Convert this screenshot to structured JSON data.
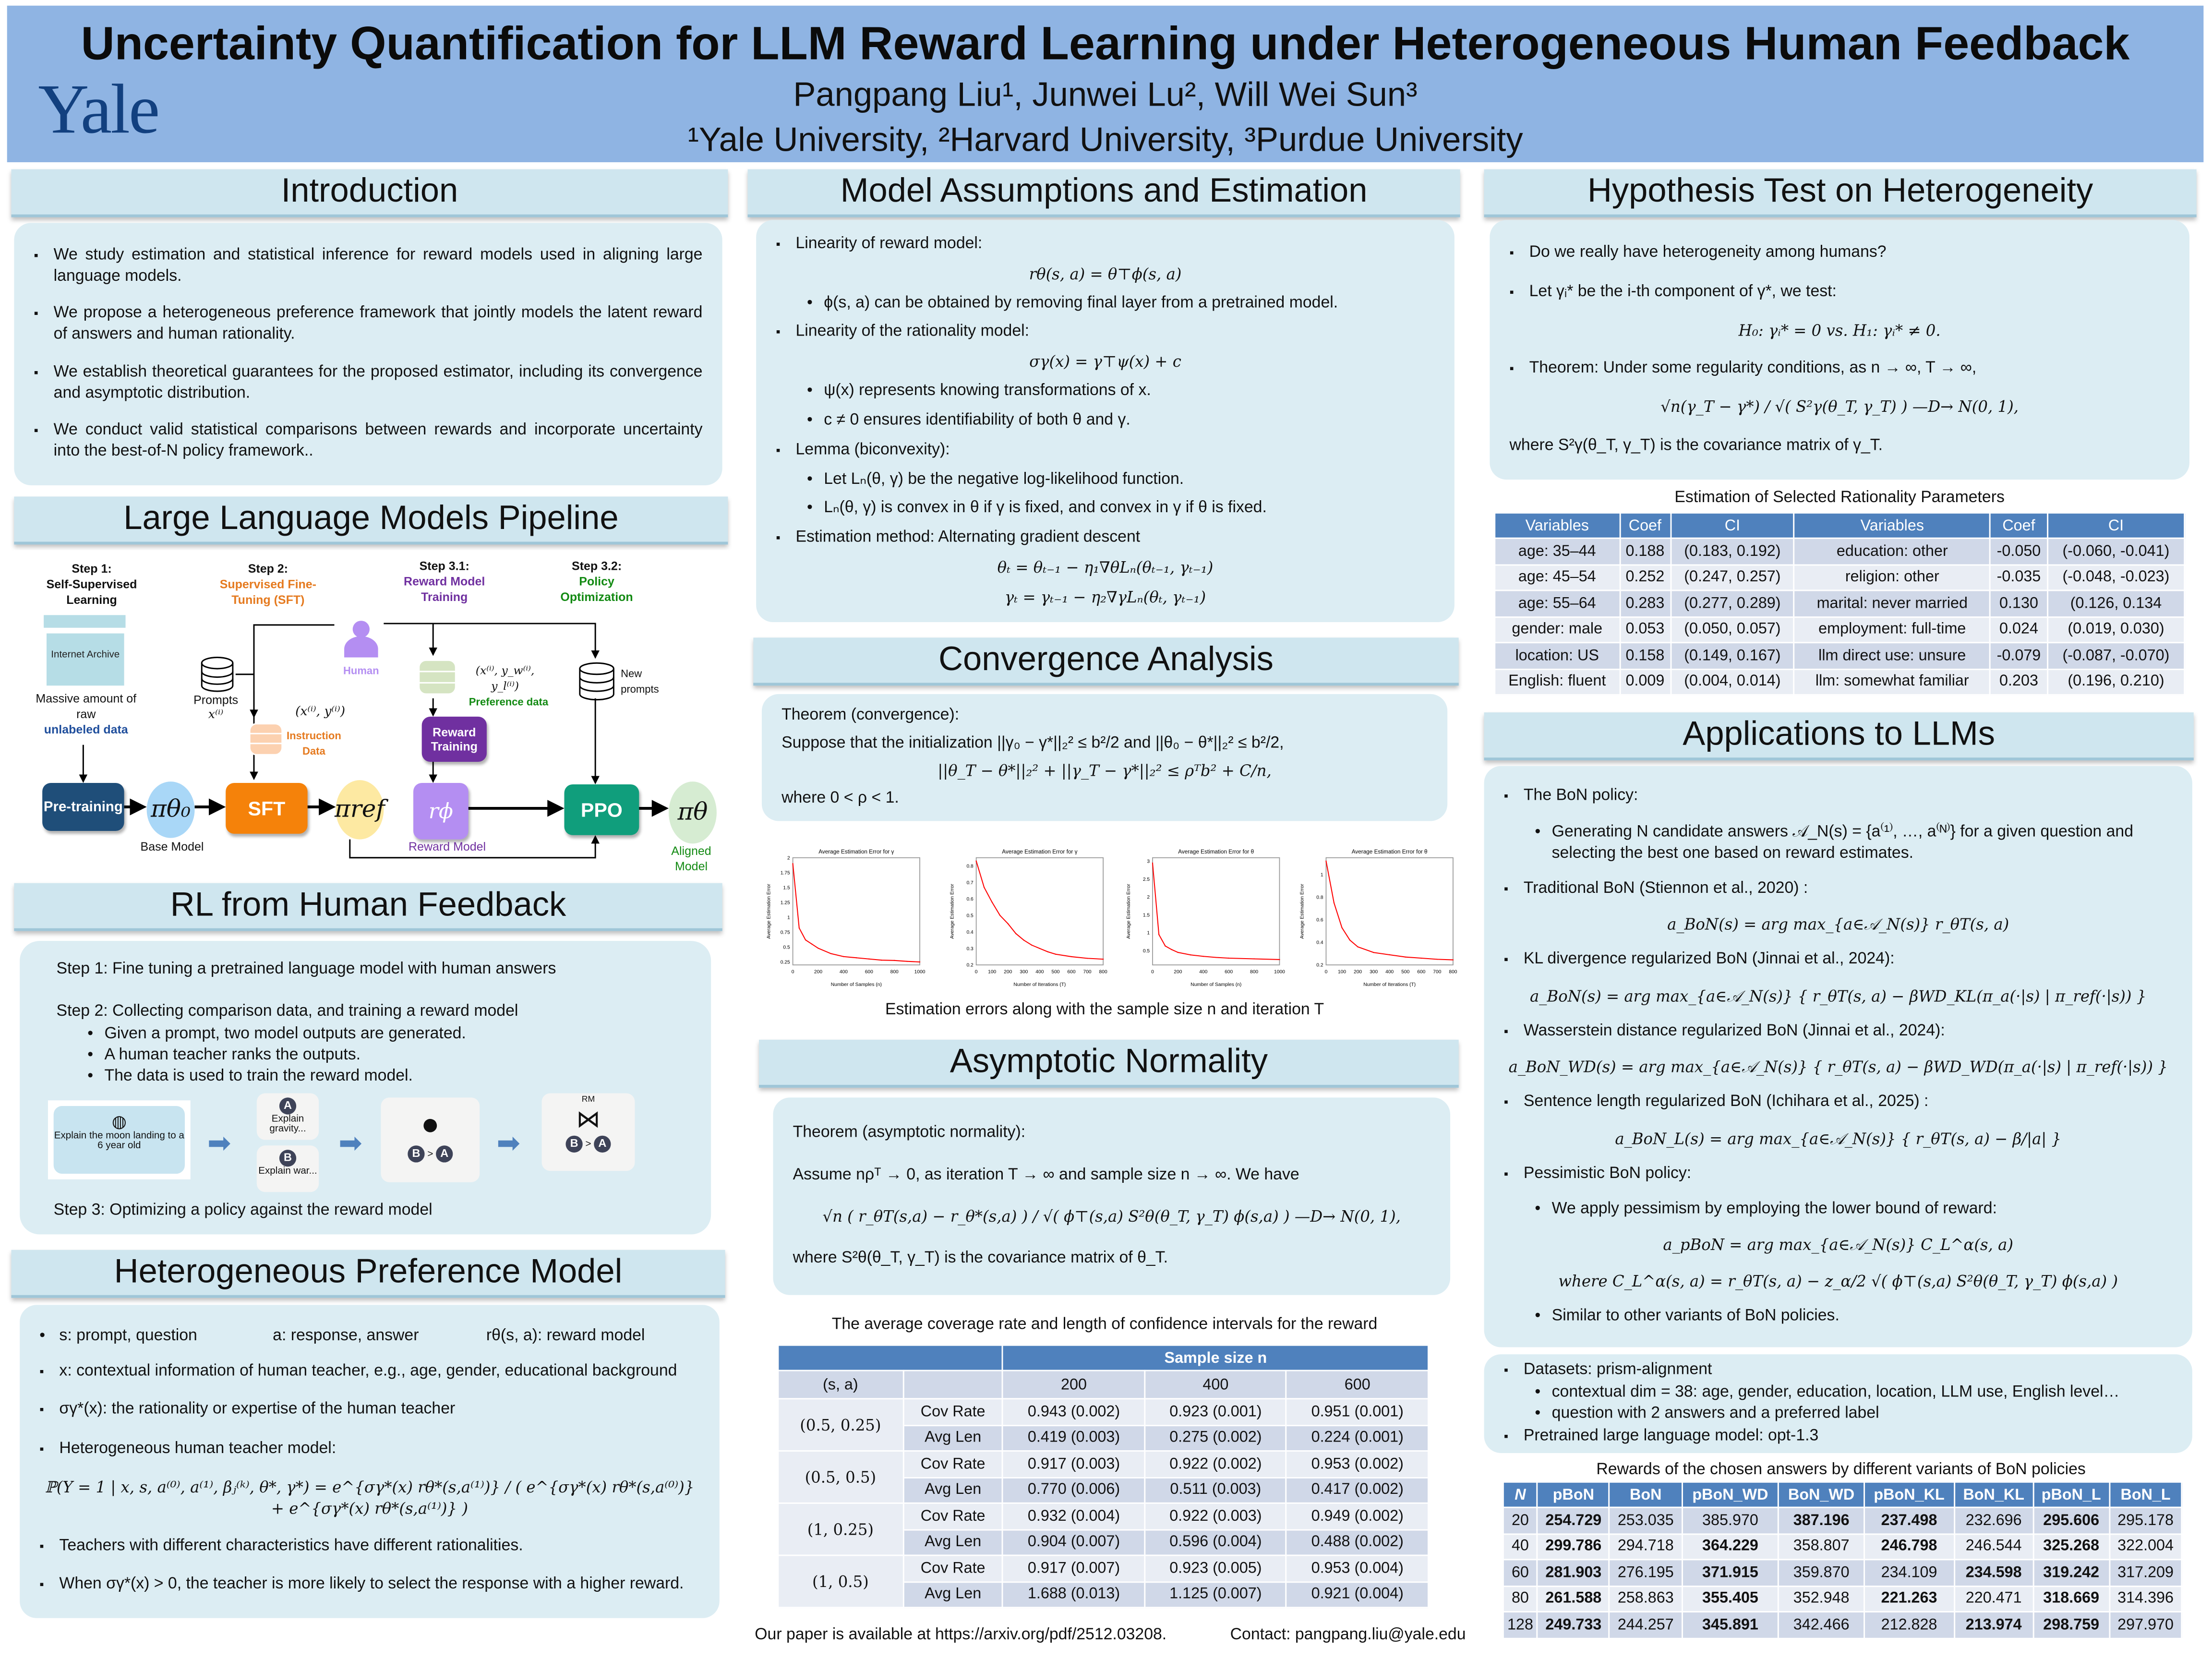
{
  "header": {
    "title": "Uncertainty Quantification for LLM Reward Learning under Heterogeneous Human Feedback",
    "logo": "Yale",
    "authors": "Pangpang Liu¹, Junwei Lu²,  Will Wei Sun³",
    "affiliations": "¹Yale University, ²Harvard University, ³Purdue University",
    "bg_color": "#8fb4e3"
  },
  "intro": {
    "heading": "Introduction",
    "blocks": [
      {
        "t": "b",
        "text": "We study estimation and statistical inference for reward models used in aligning large language models."
      },
      {
        "t": "b",
        "text": "We propose a heterogeneous preference framework that jointly models the latent reward of answers and human rationality."
      },
      {
        "t": "b",
        "text": "We establish theoretical guarantees for the proposed estimator, including its convergence and asymptotic distribution."
      },
      {
        "t": "b",
        "text": "We conduct valid statistical comparisons between rewards and incorporate uncertainty into the best-of-N policy framework.."
      }
    ]
  },
  "pipeline": {
    "heading": "Large Language Models Pipeline",
    "step1": {
      "num": "Step 1:",
      "name": "Self-Supervised Learning"
    },
    "step2": {
      "num": "Step 2:",
      "name": "Supervised Fine-Tuning (SFT)"
    },
    "step31": {
      "num": "Step 3.1:",
      "name": "Reward Model Training"
    },
    "step32": {
      "num": "Step 3.2:",
      "name": "Policy Optimization"
    },
    "archive": "Internet Archive",
    "massive": "Massive amount of raw",
    "unlabeled": "unlabeled data",
    "pretraining": "Pre-training",
    "base_policy": "πθ₀",
    "base_model": "Base Model",
    "prompts": "Prompts",
    "prompts_var": "x⁽ⁱ⁾",
    "instr_pair": "(x⁽ⁱ⁾, y⁽ⁱ⁾)",
    "instr_data": "Instruction Data",
    "sft": "SFT",
    "human": "Human",
    "ref_policy": "πref",
    "pref_tuple": "(x⁽ⁱ⁾, y_w⁽ⁱ⁾, y_l⁽ⁱ⁾)",
    "pref_data": "Preference data",
    "reward_training": "Reward Training",
    "reward_fn": "rϕ",
    "reward_model": "Reward Model",
    "new_prompts": "New prompts",
    "ppo": "PPO",
    "aligned_policy": "πθ",
    "aligned_model": "Aligned Model",
    "colors": {
      "pretraining": "#1f4e79",
      "sft": "#f5820a",
      "reward_training": "#7030a0",
      "reward_fn": "#b48ef2",
      "ppo": "#109e7c"
    }
  },
  "rlhf": {
    "heading": "RL from Human Feedback",
    "step1": "Step 1: Fine tuning a pretrained language model with human answers",
    "step2": "Step 2: Collecting comparison data, and training a reward model",
    "step2_items": [
      "Given a prompt, two model outputs are generated.",
      "A human teacher ranks the outputs.",
      "The data is used to train the reward model."
    ],
    "step3": "Step 3: Optimizing a policy against the reward model",
    "prompt": "Explain the moon landing to a 6 year old",
    "a": "A",
    "a_text": "Explain gravity...",
    "b": "B",
    "b_text": "Explain war...",
    "gt": ">",
    "rm": "RM"
  },
  "hetero": {
    "heading": "Heterogeneous Preference Model",
    "blocks": [
      {
        "t": "r",
        "texts": [
          "s: prompt, question",
          "a: response, answer",
          "rθ(s, a): reward model"
        ]
      },
      {
        "t": "b",
        "text": "x: contextual information of human teacher, e.g., age, gender, educational background"
      },
      {
        "t": "b",
        "text": "σγ*(x):  the rationality or expertise of the human teacher"
      },
      {
        "t": "b",
        "text": "Heterogeneous human teacher model:"
      },
      {
        "t": "m",
        "text": "ℙ(Y = 1 | x, s, a⁽⁰⁾, a⁽¹⁾, βⱼ⁽ᵏ⁾, θ*, γ*) = e^{σγ*(x) rθ*(s,a⁽¹⁾)} / ( e^{σγ*(x) rθ*(s,a⁽⁰⁾)} + e^{σγ*(x) rθ*(s,a⁽¹⁾)} )"
      },
      {
        "t": "b",
        "text": "Teachers with different characteristics have different rationalities."
      },
      {
        "t": "b",
        "text": "When σγ*(x) > 0, the teacher is more likely to select the response with a higher reward."
      }
    ]
  },
  "model": {
    "heading": "Model Assumptions and Estimation",
    "blocks": [
      {
        "t": "b",
        "text": "Linearity of reward model:"
      },
      {
        "t": "m",
        "text": "rθ(s, a) = θ⊤ϕ(s, a)"
      },
      {
        "t": "s",
        "text": "ϕ(s, a) can be obtained by removing final layer from a pretrained model."
      },
      {
        "t": "b",
        "text": "Linearity of the rationality model:"
      },
      {
        "t": "m",
        "text": "σγ(x) = γ⊤ψ(x) + c"
      },
      {
        "t": "s",
        "text": "ψ(x) represents knowing transformations of x."
      },
      {
        "t": "s",
        "text": "c ≠ 0 ensures identifiability of both θ and γ."
      },
      {
        "t": "b",
        "text": "Lemma (biconvexity):"
      },
      {
        "t": "s",
        "text": "Let Lₙ(θ, γ) be the negative log-likelihood function."
      },
      {
        "t": "s",
        "text": "Lₙ(θ, γ) is convex in θ if γ is fixed, and convex in γ if θ is fixed."
      },
      {
        "t": "b",
        "text": "Estimation method:   Alternating gradient descent"
      },
      {
        "t": "m",
        "text": "θₜ = θₜ₋₁ − η₁∇θLₙ(θₜ₋₁, γₜ₋₁)"
      },
      {
        "t": "m",
        "text": "γₜ = γₜ₋₁ − η₂∇γLₙ(θₜ, γₜ₋₁)"
      }
    ]
  },
  "convergence": {
    "heading": "Convergence Analysis",
    "blocks": [
      {
        "t": "p",
        "text": "Theorem (convergence):"
      },
      {
        "t": "p",
        "text": "Suppose that the initialization ||γ₀ − γ*||₂² ≤ b²/2 and ||θ₀ − θ*||₂² ≤ b²/2,"
      },
      {
        "t": "m",
        "text": "||θ_T − θ*||₂² + ||γ_T − γ*||₂² ≤ ρᵀb² + C/n,"
      },
      {
        "t": "p",
        "text": "where 0 < ρ < 1."
      }
    ],
    "caption": "Estimation errors along with the sample size n and iteration T"
  },
  "asymptotic": {
    "heading": "Asymptotic Normality",
    "blocks": [
      {
        "t": "p",
        "text": "Theorem (asymptotic normality):"
      },
      {
        "t": "p",
        "text": "Assume nρᵀ → 0, as iteration T → ∞ and sample size n → ∞. We have"
      },
      {
        "t": "m",
        "text": "√n ( r_θT(s,a) − r_θ*(s,a) ) / √( ϕ⊤(s,a) S²θ(θ_T, γ_T) ϕ(s,a) )  —D→  N(0, 1),"
      },
      {
        "t": "p",
        "text": "where S²θ(θ_T, γ_T) is the covariance matrix of θ_T."
      }
    ]
  },
  "coverage": {
    "caption": "The average coverage rate and length of confidence intervals for the reward",
    "group_header": "Sample size n",
    "sa_header": "(s, a)",
    "sizes": [
      "200",
      "400",
      "600"
    ],
    "groups": [
      {
        "sa": "(0.5, 0.25)",
        "rows": [
          {
            "metric": "Cov Rate",
            "vals": [
              "0.943 (0.002)",
              "0.923 (0.001)",
              "0.951 (0.001)"
            ]
          },
          {
            "metric": "Avg Len",
            "vals": [
              "0.419 (0.003)",
              "0.275 (0.002)",
              "0.224 (0.001)"
            ]
          }
        ]
      },
      {
        "sa": "(0.5, 0.5)",
        "rows": [
          {
            "metric": "Cov Rate",
            "vals": [
              "0.917 (0.003)",
              "0.922 (0.002)",
              "0.953 (0.002)"
            ]
          },
          {
            "metric": "Avg Len",
            "vals": [
              "0.770 (0.006)",
              "0.511 (0.003)",
              "0.417 (0.002)"
            ]
          }
        ]
      },
      {
        "sa": "(1, 0.25)",
        "rows": [
          {
            "metric": "Cov Rate",
            "vals": [
              "0.932 (0.004)",
              "0.922 (0.003)",
              "0.949 (0.002)"
            ]
          },
          {
            "metric": "Avg Len",
            "vals": [
              "0.904 (0.007)",
              "0.596 (0.004)",
              "0.488 (0.002)"
            ]
          }
        ]
      },
      {
        "sa": "(1, 0.5)",
        "rows": [
          {
            "metric": "Cov Rate",
            "vals": [
              "0.917 (0.007)",
              "0.923 (0.005)",
              "0.953 (0.004)"
            ]
          },
          {
            "metric": "Avg Len",
            "vals": [
              "1.688 (0.013)",
              "1.125 (0.007)",
              "0.921 (0.004)"
            ]
          }
        ]
      }
    ]
  },
  "hypothesis": {
    "heading": "Hypothesis Test on Heterogeneity",
    "blocks": [
      {
        "t": "b",
        "text": "Do we really have heterogeneity among humans?"
      },
      {
        "t": "b",
        "text": "Let γᵢ* be the i-th component of γ*, we test:"
      },
      {
        "t": "m",
        "text": "H₀: γᵢ* = 0   vs.   H₁: γᵢ* ≠ 0."
      },
      {
        "t": "b",
        "text": "Theorem: Under some regularity conditions, as n → ∞, T → ∞,"
      },
      {
        "t": "m",
        "text": "√n(γ_T − γ*) / √( S²γ(θ_T, γ_T) )  —D→  N(0, 1),"
      },
      {
        "t": "p",
        "text": "where S²γ(θ_T, γ_T) is the covariance matrix of γ_T."
      }
    ]
  },
  "rationality": {
    "caption": "Estimation of Selected Rationality Parameters",
    "columns": [
      "Variables",
      "Coef",
      "CI",
      "Variables",
      "Coef",
      "CI"
    ],
    "rows": [
      [
        "age: 35–44",
        "0.188",
        "(0.183, 0.192)",
        "education: other",
        "-0.050",
        "(-0.060, -0.041)"
      ],
      [
        "age: 45–54",
        "0.252",
        "(0.247, 0.257)",
        "religion: other",
        "-0.035",
        "(-0.048, -0.023)"
      ],
      [
        "age: 55–64",
        "0.283",
        "(0.277, 0.289)",
        "marital: never married",
        "0.130",
        "(0.126, 0.134"
      ],
      [
        "gender: male",
        "0.053",
        "(0.050, 0.057)",
        "employment: full-time",
        "0.024",
        "(0.019, 0.030)"
      ],
      [
        "location: US",
        "0.158",
        "(0.149, 0.167)",
        "llm direct use: unsure",
        "-0.079",
        "(-0.087, -0.070)"
      ],
      [
        "English: fluent",
        "0.009",
        "(0.004, 0.014)",
        "llm: somewhat familiar",
        "0.203",
        "(0.196, 0.210)"
      ]
    ]
  },
  "applications": {
    "heading": "Applications to LLMs",
    "blocks": [
      {
        "t": "b",
        "text": "The BoN policy:"
      },
      {
        "t": "s",
        "text": "Generating N candidate answers 𝒜_N(s) = {a⁽¹⁾, …, a⁽ᴺ⁾} for a given question and selecting the best one based on reward estimates."
      },
      {
        "t": "b",
        "text": "Traditional BoN (Stiennon et al., 2020) :"
      },
      {
        "t": "m",
        "text": "a_BoN(s) = arg max_{a∈𝒜_N(s)} r_θT(s, a)"
      },
      {
        "t": "b",
        "text": "KL divergence regularized BoN (Jinnai et al., 2024):"
      },
      {
        "t": "m",
        "text": "a_BoN(s) = arg max_{a∈𝒜_N(s)} { r_θT(s, a) − βWD_KL(π_a(·|s) | π_ref(·|s)) }"
      },
      {
        "t": "b",
        "text": "Wasserstein distance regularized BoN (Jinnai et al., 2024):"
      },
      {
        "t": "m",
        "text": "a_BoN_WD(s) = arg max_{a∈𝒜_N(s)} { r_θT(s, a) − βWD_WD(π_a(·|s) | π_ref(·|s)) }"
      },
      {
        "t": "b",
        "text": "Sentence length regularized BoN (Ichihara et al., 2025) :"
      },
      {
        "t": "m",
        "text": "a_BoN_L(s) = arg max_{a∈𝒜_N(s)} { r_θT(s, a) − β/|a| }"
      },
      {
        "t": "b",
        "text": "Pessimistic BoN policy:"
      },
      {
        "t": "s",
        "text": "We apply pessimism by employing the lower bound of reward:"
      },
      {
        "t": "m",
        "text": "a_pBoN = arg max_{a∈𝒜_N(s)} C_L^α(s, a)"
      },
      {
        "t": "m",
        "text": "where C_L^α(s, a) = r_θT(s, a) − z_α/2 √( ϕ⊤(s,a) S²θ(θ_T, γ_T) ϕ(s,a) )"
      },
      {
        "t": "s",
        "text": "Similar to other variants of BoN policies."
      }
    ]
  },
  "datasets": {
    "blocks": [
      {
        "t": "b",
        "text": "Datasets: prism-alignment"
      },
      {
        "t": "s",
        "text": "contextual dim = 38: age, gender, education, location, LLM use, English level…"
      },
      {
        "t": "s",
        "text": "question with 2 answers and a preferred label"
      },
      {
        "t": "b",
        "text": "Pretrained large language model: opt-1.3"
      }
    ]
  },
  "bon": {
    "caption": "Rewards of the chosen answers by different variants of BoN policies",
    "columns": [
      "N",
      "pBoN",
      "BoN",
      "pBoN_WD",
      "BoN_WD",
      "pBoN_KL",
      "BoN_KL",
      "pBoN_L",
      "BoN_L"
    ],
    "rows": [
      {
        "cells": [
          "20",
          "254.729",
          "253.035",
          "385.970",
          "387.196",
          "237.498",
          "232.696",
          "295.606",
          "295.178"
        ],
        "bold": [
          1,
          4,
          5,
          7
        ]
      },
      {
        "cells": [
          "40",
          "299.786",
          "294.718",
          "364.229",
          "358.807",
          "246.798",
          "246.544",
          "325.268",
          "322.004"
        ],
        "bold": [
          1,
          3,
          5,
          7
        ]
      },
      {
        "cells": [
          "60",
          "281.903",
          "276.195",
          "371.915",
          "359.870",
          "234.109",
          "234.598",
          "319.242",
          "317.209"
        ],
        "bold": [
          1,
          3,
          6,
          7
        ]
      },
      {
        "cells": [
          "80",
          "261.588",
          "258.863",
          "355.405",
          "352.948",
          "221.263",
          "220.471",
          "318.669",
          "314.396"
        ],
        "bold": [
          1,
          3,
          5,
          7
        ]
      },
      {
        "cells": [
          "128",
          "249.733",
          "244.257",
          "345.891",
          "342.466",
          "212.828",
          "213.974",
          "298.759",
          "297.970"
        ],
        "bold": [
          1,
          3,
          6,
          7
        ]
      }
    ]
  },
  "footer": {
    "paper": "Our paper is available at https://arxiv.org/pdf/2512.03208.",
    "contact": "Contact: pangpang.liu@yale.edu"
  },
  "chart_data": [
    {
      "type": "line",
      "title": "Average Estimation Error for γ",
      "xlabel": "Number of Samples (n)",
      "ylabel": "Average Estimation Error",
      "xlim": [
        0,
        1000
      ],
      "ylim": [
        0.2,
        2.0
      ],
      "xticks": [
        0,
        200,
        400,
        600,
        800,
        1000
      ],
      "yticks": [
        0.25,
        0.5,
        0.75,
        1.0,
        1.25,
        1.5,
        1.75,
        2.0
      ],
      "color": "#ff0000",
      "x": [
        0,
        50,
        100,
        150,
        200,
        300,
        400,
        500,
        600,
        700,
        800,
        900,
        1000
      ],
      "y": [
        1.9,
        0.82,
        0.62,
        0.55,
        0.48,
        0.39,
        0.34,
        0.32,
        0.3,
        0.28,
        0.275,
        0.26,
        0.25
      ]
    },
    {
      "type": "line",
      "title": "Average Estimation Error for γ",
      "xlabel": "Number of Iterations (T)",
      "ylabel": "Average Estimation Error",
      "xlim": [
        0,
        800
      ],
      "ylim": [
        0.2,
        0.85
      ],
      "xticks": [
        0,
        100,
        200,
        300,
        400,
        500,
        600,
        700,
        800
      ],
      "yticks": [
        0.2,
        0.3,
        0.4,
        0.5,
        0.6,
        0.7,
        0.8
      ],
      "color": "#ff0000",
      "x": [
        0,
        50,
        100,
        150,
        200,
        250,
        300,
        350,
        400,
        450,
        500,
        600,
        700,
        800
      ],
      "y": [
        0.83,
        0.67,
        0.58,
        0.5,
        0.45,
        0.39,
        0.35,
        0.32,
        0.3,
        0.28,
        0.265,
        0.25,
        0.24,
        0.235
      ]
    },
    {
      "type": "line",
      "title": "Average Estimation Error for θ",
      "xlabel": "Number of Samples (n)",
      "ylabel": "Average Estimation Error",
      "xlim": [
        0,
        1000
      ],
      "ylim": [
        0.1,
        3.1
      ],
      "xticks": [
        0,
        200,
        400,
        600,
        800,
        1000
      ],
      "yticks": [
        0.5,
        1.0,
        1.5,
        2.0,
        2.5,
        3.0
      ],
      "color": "#ff0000",
      "x": [
        0,
        50,
        100,
        150,
        200,
        300,
        400,
        500,
        600,
        800,
        1000
      ],
      "y": [
        2.95,
        0.95,
        0.63,
        0.53,
        0.45,
        0.38,
        0.34,
        0.31,
        0.29,
        0.27,
        0.25
      ]
    },
    {
      "type": "line",
      "title": "Average Estimation Error for θ",
      "xlabel": "Number of Iterations (T)",
      "ylabel": "Average Estimation Error",
      "xlim": [
        0,
        800
      ],
      "ylim": [
        0.2,
        1.15
      ],
      "xticks": [
        0,
        100,
        200,
        300,
        400,
        500,
        600,
        700,
        800
      ],
      "yticks": [
        0.2,
        0.4,
        0.6,
        0.8,
        1.0
      ],
      "color": "#ff0000",
      "x": [
        0,
        50,
        100,
        150,
        200,
        300,
        400,
        500,
        600,
        700,
        800
      ],
      "y": [
        1.12,
        0.75,
        0.53,
        0.42,
        0.36,
        0.31,
        0.29,
        0.27,
        0.26,
        0.25,
        0.245
      ]
    }
  ]
}
